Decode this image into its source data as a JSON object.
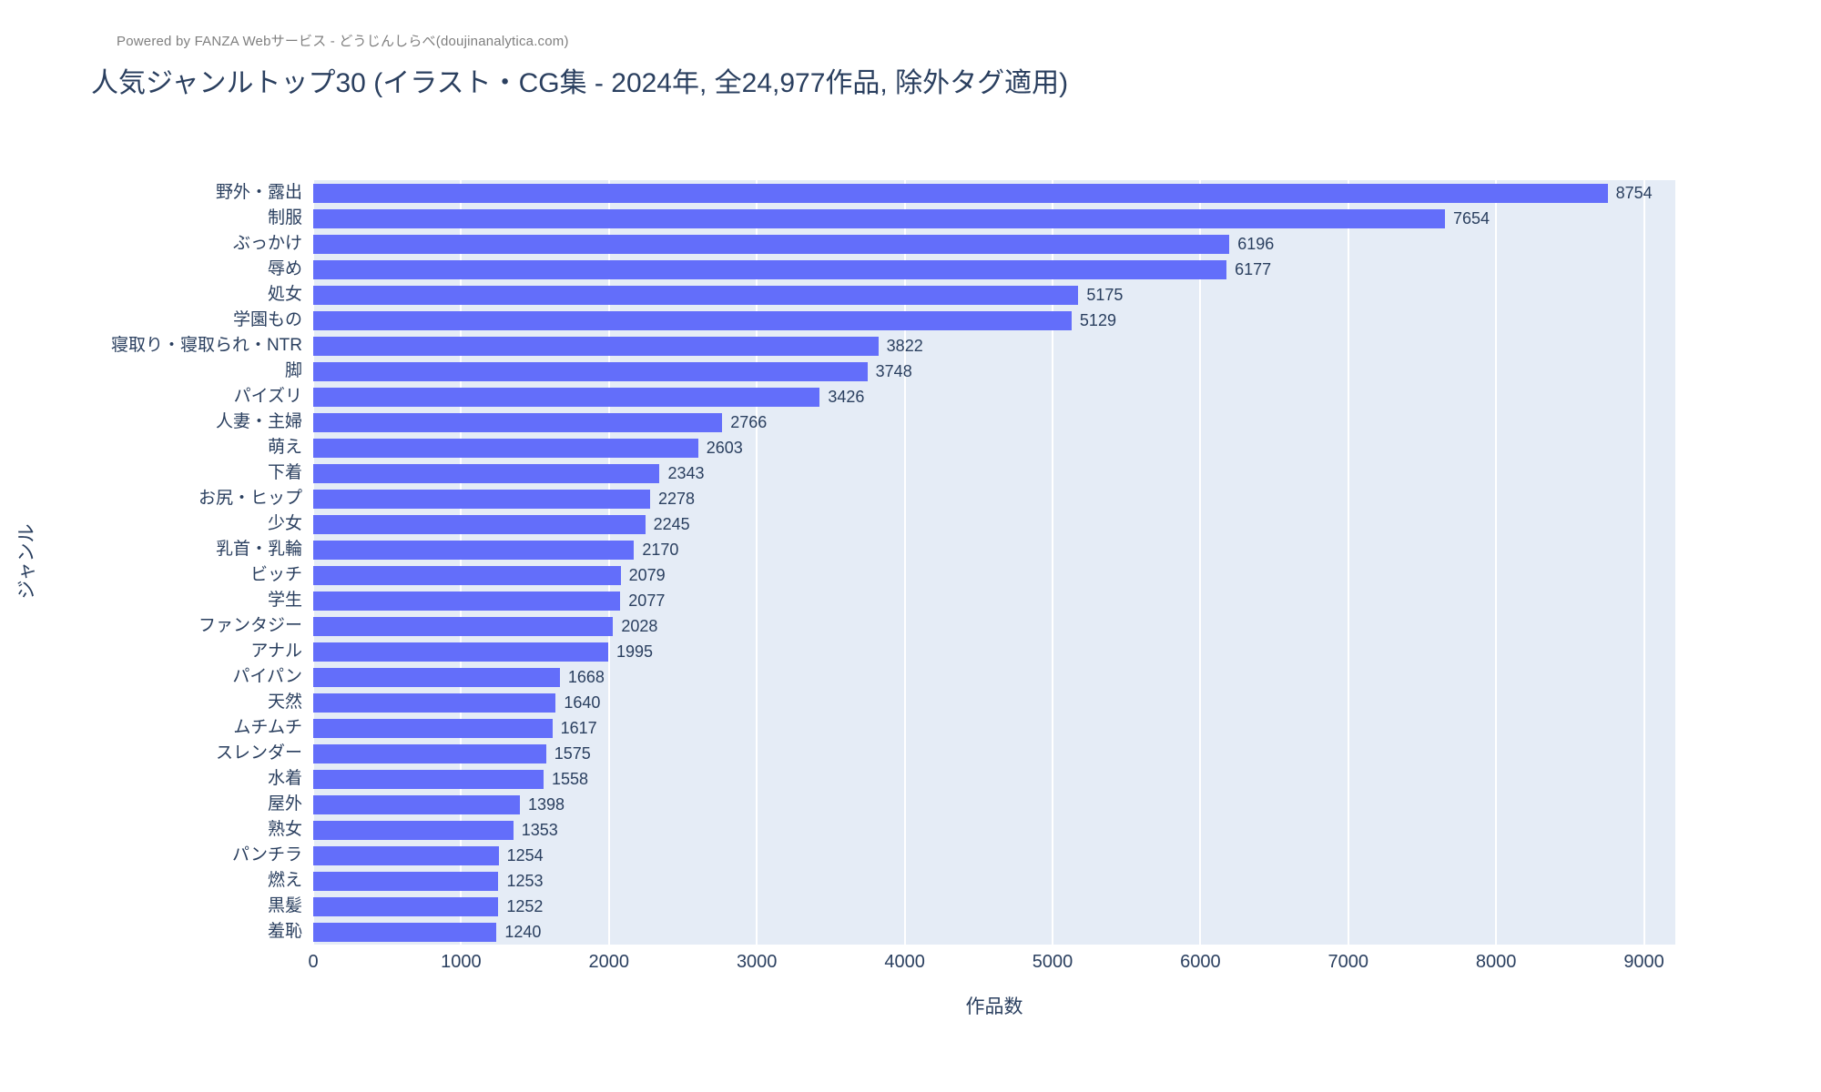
{
  "header": {
    "powered_by": "Powered by FANZA Webサービス - どうじんしらべ(doujinanalytica.com)",
    "title": "人気ジャンルトップ30 (イラスト・CG集 - 2024年, 全24,977作品, 除外タグ適用)"
  },
  "chart_data": {
    "type": "bar",
    "orientation": "horizontal",
    "title": "人気ジャンルトップ30 (イラスト・CG集 - 2024年, 全24,977作品, 除外タグ適用)",
    "xlabel": "作品数",
    "ylabel": "ジャンル",
    "xlim": [
      0,
      9212
    ],
    "xticks": [
      0,
      1000,
      2000,
      3000,
      4000,
      5000,
      6000,
      7000,
      8000,
      9000
    ],
    "grid": true,
    "legend": false,
    "value_labels": "outside",
    "categories": [
      "野外・露出",
      "制服",
      "ぶっかけ",
      "辱め",
      "処女",
      "学園もの",
      "寝取り・寝取られ・NTR",
      "脚",
      "パイズリ",
      "人妻・主婦",
      "萌え",
      "下着",
      "お尻・ヒップ",
      "少女",
      "乳首・乳輪",
      "ビッチ",
      "学生",
      "ファンタジー",
      "アナル",
      "パイパン",
      "天然",
      "ムチムチ",
      "スレンダー",
      "水着",
      "屋外",
      "熟女",
      "パンチラ",
      "燃え",
      "黒髪",
      "羞恥"
    ],
    "values": [
      8754,
      7654,
      6196,
      6177,
      5175,
      5129,
      3822,
      3748,
      3426,
      2766,
      2603,
      2343,
      2278,
      2245,
      2170,
      2079,
      2077,
      2028,
      1995,
      1668,
      1640,
      1617,
      1575,
      1558,
      1398,
      1353,
      1254,
      1253,
      1252,
      1240
    ],
    "colors": {
      "bar": "#636efa",
      "plot_background": "#e5ecf6",
      "gridline": "#ffffff",
      "text": "#2a3f5f",
      "powered_by_text": "#7f7f7f"
    }
  }
}
